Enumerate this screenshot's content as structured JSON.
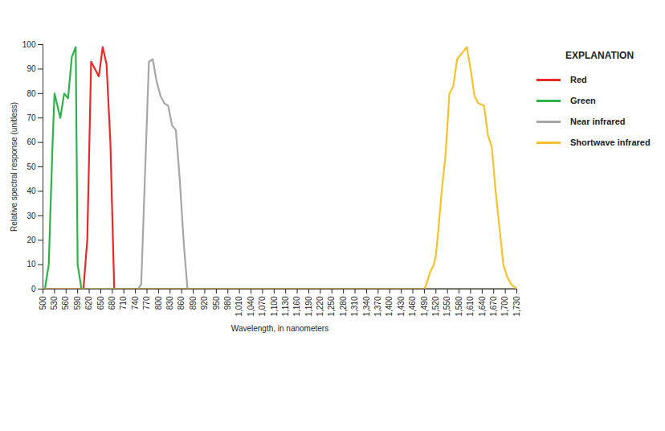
{
  "chart_data": {
    "type": "line",
    "x_label": "Wavelength, in nanometers",
    "y_label": "Relative spectral response (unitless)",
    "legend_title": "EXPLANATION",
    "legend": "right",
    "grid": false,
    "xlim": [
      500,
      1730
    ],
    "ylim": [
      0,
      100
    ],
    "yticks": [
      0,
      10,
      20,
      30,
      40,
      50,
      60,
      70,
      80,
      90,
      100
    ],
    "xticks": [
      500,
      530,
      560,
      590,
      620,
      650,
      680,
      710,
      740,
      770,
      800,
      830,
      860,
      890,
      920,
      950,
      980,
      {
        "value": 1010,
        "label": "1,010"
      },
      {
        "value": 1040,
        "label": "1,040"
      },
      {
        "value": 1070,
        "label": "1,070"
      },
      {
        "value": 1100,
        "label": "1,100"
      },
      {
        "value": 1130,
        "label": "1,130"
      },
      {
        "value": 1160,
        "label": "1,160"
      },
      {
        "value": 1190,
        "label": "1,190"
      },
      {
        "value": 1220,
        "label": "1,220"
      },
      {
        "value": 1250,
        "label": "1,250"
      },
      {
        "value": 1280,
        "label": "1,280"
      },
      {
        "value": 1310,
        "label": "1,310"
      },
      {
        "value": 1340,
        "label": "1,340"
      },
      {
        "value": 1370,
        "label": "1,370"
      },
      {
        "value": 1400,
        "label": "1,400"
      },
      {
        "value": 1430,
        "label": "1,430"
      },
      {
        "value": 1460,
        "label": "1,460"
      },
      {
        "value": 1490,
        "label": "1,490"
      },
      {
        "value": 1520,
        "label": "1,520"
      },
      {
        "value": 1550,
        "label": "1,550"
      },
      {
        "value": 1580,
        "label": "1,580"
      },
      {
        "value": 1610,
        "label": "1,610"
      },
      {
        "value": 1640,
        "label": "1,640"
      },
      {
        "value": 1670,
        "label": "1,670"
      },
      {
        "value": 1700,
        "label": "1,700"
      },
      {
        "value": 1730,
        "label": "1,730"
      }
    ],
    "series": [
      {
        "name": "Red",
        "color": "#e8292a",
        "x": [
          500,
          605,
          615,
          625,
          645,
          655,
          665,
          675,
          685,
          1730
        ],
        "values": [
          0,
          0,
          20,
          93,
          87,
          99,
          92,
          60,
          0,
          0
        ]
      },
      {
        "name": "Green",
        "color": "#2db34a",
        "x": [
          500,
          505,
          515,
          525,
          530,
          545,
          555,
          565,
          575,
          585,
          590,
          600,
          1730
        ],
        "values": [
          0,
          0,
          10,
          60,
          80,
          70,
          80,
          78,
          95,
          99,
          10,
          0,
          0
        ]
      },
      {
        "name": "Near infrared",
        "color": "#a6a6a6",
        "x": [
          500,
          747,
          755,
          775,
          785,
          795,
          805,
          815,
          825,
          835,
          845,
          855,
          865,
          875,
          1730
        ],
        "values": [
          0,
          0,
          2,
          93,
          94,
          85,
          79,
          76,
          75,
          67,
          65,
          45,
          20,
          0,
          0
        ]
      },
      {
        "name": "Shortwave infrared",
        "color": "#f6c22d",
        "x": [
          500,
          1490,
          1495,
          1505,
          1515,
          1520,
          1525,
          1535,
          1545,
          1555,
          1565,
          1575,
          1590,
          1600,
          1610,
          1620,
          1630,
          1645,
          1655,
          1665,
          1675,
          1685,
          1695,
          1705,
          1715,
          1730
        ],
        "values": [
          0,
          0,
          2,
          7,
          10,
          14,
          22,
          40,
          55,
          80,
          83,
          94,
          97,
          99,
          90,
          79,
          76,
          75,
          63,
          58,
          40,
          25,
          10,
          5,
          2,
          0
        ]
      }
    ]
  }
}
